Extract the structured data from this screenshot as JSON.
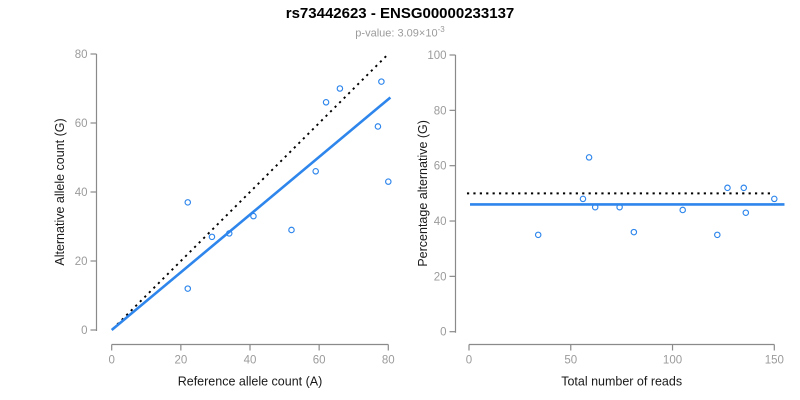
{
  "header": {
    "title": "rs73442623 - ENSG00000233137",
    "subtitle_main": "p-value: 3.09×10",
    "subtitle_exponent": "-3"
  },
  "colors": {
    "accent_blue": "#2e86ec",
    "identity_black": "#000000",
    "axis_line": "#8a8a8a",
    "tick_label": "#9b9b9b",
    "axis_title": "#1a1a1a",
    "title": "#000000",
    "subtitle": "#9b9b9b",
    "background": "#ffffff"
  },
  "chart_data": [
    {
      "type": "scatter",
      "panel": "left",
      "xlabel": "Reference allele count (A)",
      "ylabel": "Alternative allele count (G)",
      "xlim": [
        0,
        80
      ],
      "ylim": [
        0,
        80
      ],
      "xticks": [
        0,
        20,
        40,
        60,
        80
      ],
      "yticks": [
        0,
        20,
        40,
        60,
        80
      ],
      "grid": false,
      "legend": null,
      "points": [
        [
          22,
          12
        ],
        [
          22,
          37
        ],
        [
          29,
          27
        ],
        [
          34,
          28
        ],
        [
          41,
          33
        ],
        [
          52,
          29
        ],
        [
          59,
          46
        ],
        [
          62,
          66
        ],
        [
          66,
          70
        ],
        [
          77,
          59
        ],
        [
          78,
          72
        ],
        [
          80,
          43
        ]
      ],
      "lines": [
        {
          "name": "identity-line",
          "style": "dotted",
          "color": "#000000",
          "width": 1.9,
          "from": [
            0.3,
            0.3
          ],
          "to": [
            79.6,
            79.6
          ]
        },
        {
          "name": "fit-line",
          "style": "solid",
          "color": "#2e86ec",
          "width": 2.6,
          "from": [
            0,
            0
          ],
          "to": [
            80.6,
            67.4
          ]
        }
      ]
    },
    {
      "type": "scatter",
      "panel": "right",
      "xlabel": "Total number of reads",
      "ylabel": "Percentage alternative (G)",
      "xlim": [
        0,
        150
      ],
      "ylim": [
        0,
        100
      ],
      "xticks": [
        0,
        50,
        100,
        150
      ],
      "yticks": [
        0,
        20,
        40,
        60,
        80,
        100
      ],
      "grid": false,
      "legend": null,
      "points": [
        [
          34,
          35
        ],
        [
          56,
          48
        ],
        [
          59,
          63
        ],
        [
          62,
          45
        ],
        [
          74,
          45
        ],
        [
          81,
          36
        ],
        [
          105,
          44
        ],
        [
          122,
          35
        ],
        [
          127,
          52
        ],
        [
          135,
          52
        ],
        [
          136,
          43
        ],
        [
          150,
          48
        ]
      ],
      "lines": [
        {
          "name": "expected-50pct-line",
          "style": "dotted",
          "color": "#000000",
          "width": 2.0,
          "from": [
            -1,
            50
          ],
          "to": [
            149,
            50
          ]
        },
        {
          "name": "mean-pct-line",
          "style": "solid",
          "color": "#2e86ec",
          "width": 2.6,
          "from": [
            0.5,
            46
          ],
          "to": [
            155,
            46
          ]
        }
      ]
    }
  ]
}
